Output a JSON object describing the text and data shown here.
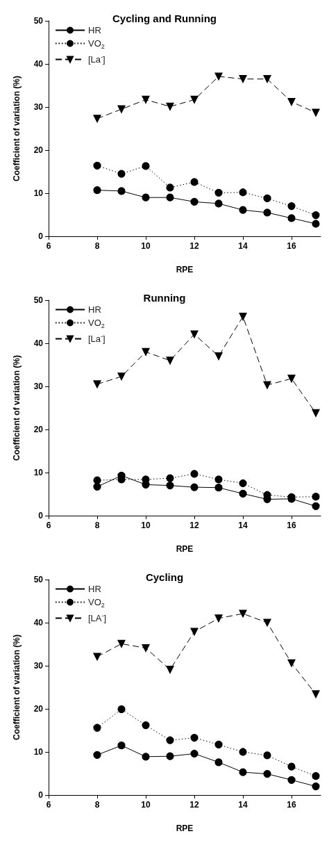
{
  "chart_data": [
    {
      "type": "line",
      "title": "Cycling and Running",
      "xlabel": "RPE",
      "ylabel": "Coefficient of variation (%)",
      "x": [
        8,
        9,
        10,
        11,
        12,
        13,
        14,
        15,
        16,
        17
      ],
      "xlim": [
        6,
        17.2
      ],
      "xticks": [
        6,
        8,
        10,
        12,
        14,
        16
      ],
      "ylim": [
        0,
        50
      ],
      "yticks": [
        0,
        10,
        20,
        30,
        40,
        50
      ],
      "grid": false,
      "legend": "top left",
      "series": [
        {
          "name": "HR",
          "color": "#000000",
          "marker": "circle",
          "line_style": "solid",
          "values": [
            10.7,
            10.5,
            9,
            9,
            8,
            7.6,
            6.1,
            5.5,
            4.2,
            2.9
          ]
        },
        {
          "name": "VO$_{2}$",
          "color": "#000000",
          "marker": "circle",
          "line_style": "dotted",
          "values": [
            16.4,
            14.5,
            16.3,
            11.3,
            12.6,
            10.1,
            10.2,
            8.8,
            7,
            4.9
          ]
        },
        {
          "name": "[La$^{-}$]",
          "color": "#000000",
          "marker": "triangle",
          "line_style": "dashed",
          "values": [
            27.3,
            29.5,
            31.7,
            30.1,
            31.7,
            37.1,
            36.5,
            36.5,
            31.2,
            28.7
          ]
        }
      ]
    },
    {
      "type": "line",
      "title": "Running",
      "xlabel": "RPE",
      "ylabel": "Coefficient of variation (%)",
      "x": [
        8,
        9,
        10,
        11,
        12,
        13,
        14,
        15,
        16,
        17
      ],
      "xlim": [
        6,
        17.2
      ],
      "xticks": [
        6,
        8,
        10,
        12,
        14,
        16
      ],
      "ylim": [
        0,
        50
      ],
      "yticks": [
        0,
        10,
        20,
        30,
        40,
        50
      ],
      "grid": false,
      "legend": "top left",
      "series": [
        {
          "name": "HR",
          "color": "#000000",
          "marker": "circle",
          "line_style": "solid",
          "values": [
            6.7,
            9.3,
            7.2,
            7,
            6.6,
            6.5,
            5.1,
            3.8,
            3.9,
            2.2
          ]
        },
        {
          "name": "VO$_{2}$",
          "color": "#000000",
          "marker": "circle",
          "line_style": "dotted",
          "values": [
            8.2,
            8.4,
            8.4,
            8.7,
            9.7,
            8.4,
            7.5,
            4.8,
            4.3,
            4.4
          ]
        },
        {
          "name": "[La$^{-}$]",
          "color": "#000000",
          "marker": "triangle",
          "line_style": "dashed",
          "values": [
            30.5,
            32.3,
            38,
            36,
            42.1,
            37,
            46.2,
            30.3,
            31.8,
            23.8
          ]
        }
      ]
    },
    {
      "type": "line",
      "title": "Cycling",
      "xlabel": "RPE",
      "ylabel": "Coefficient of variation (%)",
      "x": [
        8,
        9,
        10,
        11,
        12,
        13,
        14,
        15,
        16,
        17
      ],
      "xlim": [
        6,
        17.2
      ],
      "xticks": [
        6,
        8,
        10,
        12,
        14,
        16
      ],
      "ylim": [
        0,
        50
      ],
      "yticks": [
        0,
        10,
        20,
        30,
        40,
        50
      ],
      "grid": false,
      "legend": "top left",
      "series": [
        {
          "name": "HR",
          "color": "#000000",
          "marker": "circle",
          "line_style": "solid",
          "values": [
            9.3,
            11.5,
            8.9,
            9,
            9.6,
            7.6,
            5.3,
            4.9,
            3.5,
            2
          ]
        },
        {
          "name": "VO$_{2}$",
          "color": "#000000",
          "marker": "circle",
          "line_style": "dotted",
          "values": [
            15.6,
            19.9,
            16.2,
            12.7,
            13.3,
            11.7,
            10,
            9.2,
            6.6,
            4.4
          ]
        },
        {
          "name": "[LA$^{-}$]",
          "color": "#000000",
          "marker": "triangle",
          "line_style": "dashed",
          "values": [
            32.1,
            35.1,
            34.1,
            29.1,
            37.9,
            41,
            42.1,
            40,
            30.6,
            23.4
          ]
        }
      ]
    }
  ]
}
